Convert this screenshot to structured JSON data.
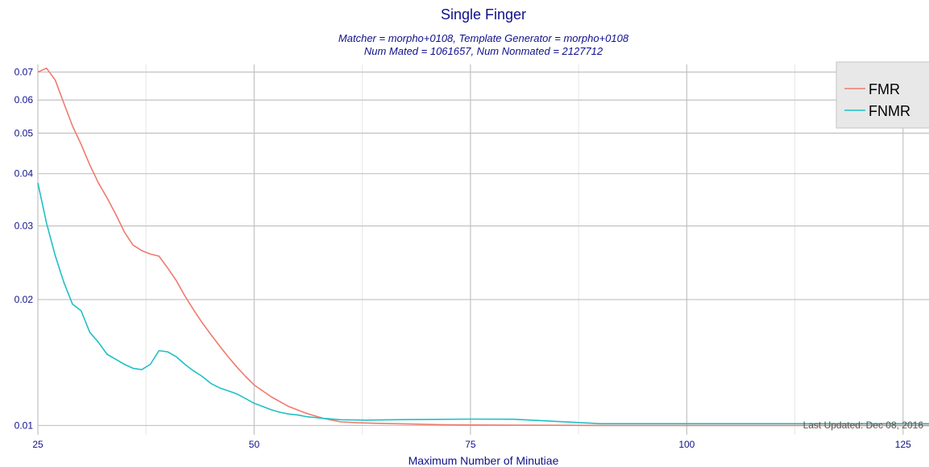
{
  "chart_data": {
    "type": "line",
    "title": "Single Finger",
    "subtitle_lines": [
      "Matcher = morpho+0108, Template Generator = morpho+0108",
      "Num Mated = 1061657, Num Nonmated = 2127712"
    ],
    "xlabel": "Maximum Number of Minutiae",
    "ylabel": "",
    "xlim": [
      25,
      128
    ],
    "ylim": [
      0.0095,
      0.073
    ],
    "yscale": "log",
    "grid": true,
    "x_ticks": [
      25,
      50,
      75,
      100,
      125
    ],
    "y_ticks": [
      0.01,
      0.02,
      0.03,
      0.04,
      0.05,
      0.06,
      0.07
    ],
    "y_tick_labels": [
      "0.01",
      "0.02",
      "0.03",
      "0.04",
      "0.05",
      "0.06",
      "0.07"
    ],
    "legend_position": "top-right",
    "footnote": "Last Updated: Dec 08, 2016",
    "series": [
      {
        "name": "FMR",
        "color": "#f07a6d",
        "x": [
          25,
          26,
          27,
          28,
          29,
          30,
          31,
          32,
          33,
          34,
          35,
          36,
          37,
          38,
          39,
          40,
          41,
          42,
          43,
          44,
          45,
          46,
          47,
          48,
          49,
          50,
          52,
          54,
          56,
          58,
          60,
          62,
          64,
          66,
          68,
          70,
          72,
          75,
          80,
          85,
          90,
          95,
          100,
          110,
          120,
          128
        ],
        "y": [
          0.07,
          0.0715,
          0.067,
          0.059,
          0.052,
          0.047,
          0.042,
          0.038,
          0.035,
          0.032,
          0.029,
          0.027,
          0.0262,
          0.0257,
          0.0254,
          0.0238,
          0.0222,
          0.0204,
          0.0189,
          0.0176,
          0.0165,
          0.0155,
          0.0146,
          0.0138,
          0.0131,
          0.0125,
          0.0117,
          0.0111,
          0.0107,
          0.0104,
          0.0102,
          0.01015,
          0.01012,
          0.0101,
          0.01008,
          0.01006,
          0.01004,
          0.01003,
          0.01002,
          0.01001,
          0.01,
          0.01,
          0.01,
          0.01,
          0.01,
          0.01
        ]
      },
      {
        "name": "FNMR",
        "color": "#1ec0c6",
        "x": [
          25,
          26,
          27,
          28,
          29,
          30,
          31,
          32,
          33,
          34,
          35,
          36,
          37,
          38,
          39,
          40,
          41,
          42,
          43,
          44,
          45,
          46,
          47,
          48,
          49,
          50,
          51,
          52,
          53,
          54,
          55,
          56,
          57,
          58,
          60,
          63,
          66,
          70,
          75,
          80,
          90,
          100,
          110,
          120,
          128
        ],
        "y": [
          0.038,
          0.0305,
          0.0255,
          0.022,
          0.0195,
          0.0188,
          0.0167,
          0.0158,
          0.0148,
          0.0144,
          0.014,
          0.0137,
          0.0136,
          0.014,
          0.0151,
          0.015,
          0.0146,
          0.014,
          0.0135,
          0.0131,
          0.0126,
          0.0123,
          0.0121,
          0.0119,
          0.0116,
          0.0113,
          0.0111,
          0.0109,
          0.01075,
          0.01065,
          0.0106,
          0.0105,
          0.01045,
          0.0104,
          0.01032,
          0.0103,
          0.01032,
          0.01034,
          0.01036,
          0.01035,
          0.0101,
          0.0101,
          0.0101,
          0.0101,
          0.0101
        ]
      }
    ]
  }
}
